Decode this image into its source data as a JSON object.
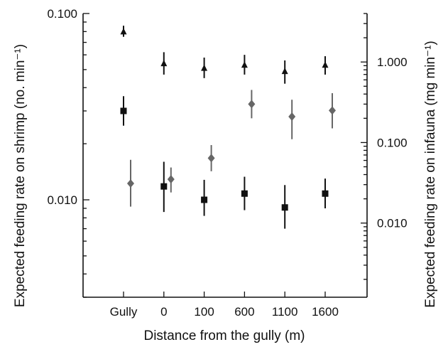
{
  "chart_data": {
    "type": "scatter",
    "title": "",
    "xlabel": "Distance from the gully (m)",
    "ylabel_left": "Expected feeding rate on shrimp (no. min⁻¹)",
    "ylabel_right": "Expected feeding rate on infauna (mg min⁻¹)",
    "categories": [
      "Gully",
      "0",
      "100",
      "600",
      "1100",
      "1600"
    ],
    "y_left": {
      "scale": "log",
      "range": [
        0.003,
        0.1
      ],
      "ticks": [
        0.1,
        0.01
      ],
      "tick_labels": [
        "0.100",
        "0.010"
      ]
    },
    "y_right": {
      "scale": "log",
      "range": [
        0.0012,
        4.0
      ],
      "ticks": [
        1.0,
        0.1,
        0.01
      ],
      "tick_labels": [
        "1.000",
        "0.100",
        "0.010"
      ]
    },
    "grid": false,
    "legend": "none",
    "series": [
      {
        "marker": "square",
        "axis": "left",
        "color": "#111111",
        "points": [
          {
            "x": "Gully",
            "y": 0.03,
            "low": 0.025,
            "high": 0.036
          },
          {
            "x": "0",
            "y": 0.0118,
            "low": 0.0086,
            "high": 0.016
          },
          {
            "x": "100",
            "y": 0.01,
            "low": 0.0082,
            "high": 0.0128
          },
          {
            "x": "600",
            "y": 0.0108,
            "low": 0.0088,
            "high": 0.0133
          },
          {
            "x": "1100",
            "y": 0.0091,
            "low": 0.007,
            "high": 0.012
          },
          {
            "x": "1600",
            "y": 0.0108,
            "low": 0.009,
            "high": 0.013
          }
        ]
      },
      {
        "marker": "triangle",
        "axis": "left",
        "color": "#111111",
        "points": [
          {
            "x": "Gully",
            "y": 0.08,
            "low": 0.075,
            "high": 0.086
          },
          {
            "x": "0",
            "y": 0.054,
            "low": 0.047,
            "high": 0.062
          },
          {
            "x": "100",
            "y": 0.051,
            "low": 0.045,
            "high": 0.058
          },
          {
            "x": "600",
            "y": 0.053,
            "low": 0.047,
            "high": 0.06
          },
          {
            "x": "1100",
            "y": 0.049,
            "low": 0.042,
            "high": 0.056
          },
          {
            "x": "1600",
            "y": 0.053,
            "low": 0.047,
            "high": 0.059
          }
        ]
      },
      {
        "marker": "diamond",
        "axis": "right",
        "color": "#666666",
        "points": [
          {
            "x": "Gully",
            "y": 0.031,
            "low": 0.016,
            "high": 0.061
          },
          {
            "x": "0",
            "y": 0.035,
            "low": 0.024,
            "high": 0.049
          },
          {
            "x": "100",
            "y": 0.064,
            "low": 0.044,
            "high": 0.093
          },
          {
            "x": "600",
            "y": 0.3,
            "low": 0.2,
            "high": 0.45
          },
          {
            "x": "1100",
            "y": 0.21,
            "low": 0.11,
            "high": 0.34
          },
          {
            "x": "1600",
            "y": 0.25,
            "low": 0.15,
            "high": 0.41
          }
        ]
      }
    ]
  }
}
